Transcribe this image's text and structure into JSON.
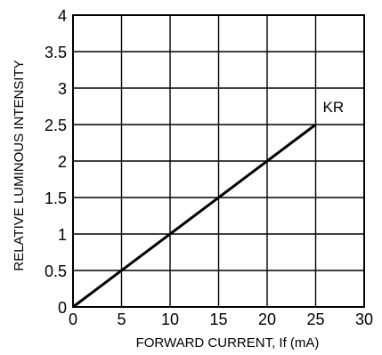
{
  "chart_data": {
    "type": "line",
    "title": "",
    "xlabel": "FORWARD CURRENT, If (mA)",
    "ylabel": "RELATIVE LUMINOUS INTENSITY",
    "xlim": [
      0,
      30
    ],
    "ylim": [
      0,
      4
    ],
    "x_ticks": [
      "0",
      "5",
      "10",
      "15",
      "20",
      "25",
      "30"
    ],
    "y_ticks": [
      "0",
      "0.5",
      "1",
      "1.5",
      "2",
      "2.5",
      "3",
      "3.5",
      "4"
    ],
    "grid": true,
    "series": [
      {
        "name": "KR",
        "x": [
          0,
          25
        ],
        "y": [
          0,
          2.5
        ]
      }
    ]
  }
}
